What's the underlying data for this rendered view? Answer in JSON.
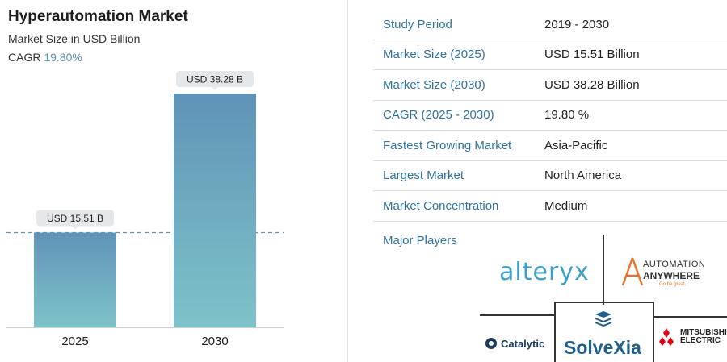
{
  "header": {
    "title": "Hyperautomation Market",
    "subtitle": "Market Size in USD Billion",
    "cagr_label": "CAGR",
    "cagr_value": "19.80%"
  },
  "chart_data": {
    "type": "bar",
    "title": "Hyperautomation Market",
    "ylabel": "Market Size in USD Billion",
    "categories": [
      "2025",
      "2030"
    ],
    "values": [
      15.51,
      38.28
    ],
    "data_labels": [
      "USD 15.51 B",
      "USD 38.28 B"
    ],
    "ylim": [
      0,
      38.28
    ],
    "grid": false,
    "reference_line": 15.51,
    "colors": {
      "bar_top": "#5f93b8",
      "bar_bottom": "#7ec3c8",
      "label_bg": "#e4e8ea",
      "reference": "#5f93b8"
    }
  },
  "facts": [
    {
      "key": "Study Period",
      "value": "2019 - 2030"
    },
    {
      "key": "Market Size (2025)",
      "value": "USD 15.51 Billion"
    },
    {
      "key": "Market Size (2030)",
      "value": "USD 38.28 Billion"
    },
    {
      "key": "CAGR (2025 - 2030)",
      "value": "19.80 %"
    },
    {
      "key": "Fastest Growing Market",
      "value": "Asia-Pacific"
    },
    {
      "key": "Largest Market",
      "value": "North America"
    },
    {
      "key": "Market Concentration",
      "value": "Medium"
    }
  ],
  "players": {
    "label": "Major Players",
    "alteryx": "alteryx",
    "automation_anywhere": {
      "line1": "AUTOMATION",
      "line2": "ANYWHERE",
      "tagline": "Go be great."
    },
    "catalytic": "Catalytic",
    "solvexia": "SolveXia",
    "mitsubishi": {
      "line1": "MITSUBISHI",
      "line2": "ELECTRIC"
    }
  },
  "colors": {
    "accent": "#2f73a0",
    "alteryx": "#3aa0c9",
    "solvexia": "#1d5f8f",
    "automation_anywhere": "#e8742a",
    "mitsubishi": "#e60012"
  }
}
